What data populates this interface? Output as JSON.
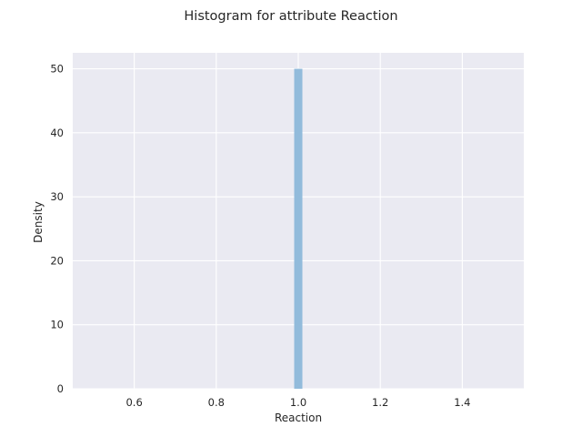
{
  "chart_data": {
    "type": "bar",
    "title": "Histogram for attribute Reaction",
    "xlabel": "Reaction",
    "ylabel": "Density",
    "xlim": [
      0.45,
      1.55
    ],
    "ylim": [
      0,
      52.5
    ],
    "xticks": [
      "0.6",
      "0.8",
      "1.0",
      "1.2",
      "1.4"
    ],
    "xtick_values": [
      0.6,
      0.8,
      1.0,
      1.2,
      1.4
    ],
    "yticks": [
      "0",
      "10",
      "20",
      "30",
      "40",
      "50"
    ],
    "ytick_values": [
      0,
      10,
      20,
      30,
      40,
      50
    ],
    "grid": true,
    "bins": [
      {
        "x_start": 0.99,
        "x_end": 1.01,
        "value": 50
      }
    ],
    "colors": {
      "background": "#eaeaf2",
      "grid": "#ffffff",
      "bar": "#92bbdb"
    }
  }
}
